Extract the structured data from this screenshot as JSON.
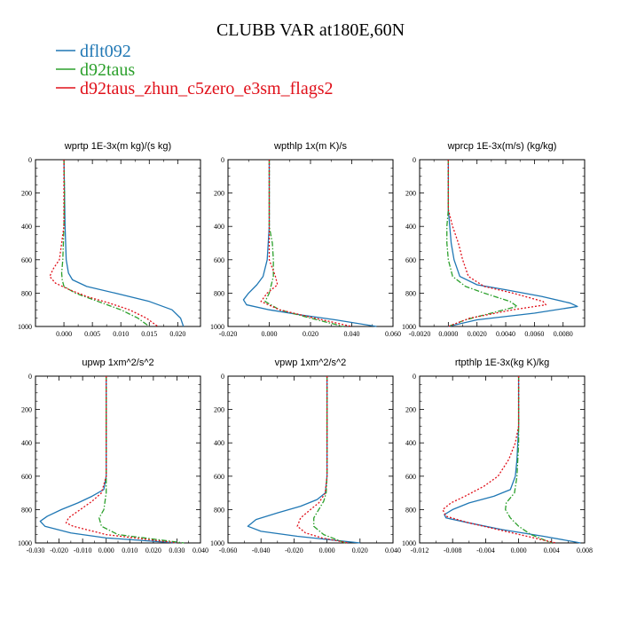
{
  "title": "CLUBB VAR at180E,60N",
  "legend": [
    {
      "label": "dflt092",
      "color": "#1f77b4",
      "dash": "solid"
    },
    {
      "label": "d92taus",
      "color": "#2ca02c",
      "dash": "dashdot"
    },
    {
      "label": "d92taus_zhun_c5zero_e3sm_flags2",
      "color": "#e0101a",
      "dash": "dotted"
    }
  ],
  "chart_data": [
    {
      "type": "line",
      "title": "wprtp   1E-3x(m kg)/(s kg)",
      "xlim": [
        -0.005,
        0.024
      ],
      "xticks": [
        0.0,
        0.005,
        0.01,
        0.015,
        0.02
      ],
      "xtick_labels": [
        "0.000",
        "0.005",
        "0.010",
        "0.015",
        "0.020"
      ],
      "ylim": [
        1000,
        0
      ],
      "yticks": [
        0,
        200,
        400,
        600,
        800,
        1000
      ],
      "ytick_labels": [
        "0",
        "200",
        "400",
        "600",
        "800",
        "1000"
      ],
      "series": [
        {
          "name": "dflt092",
          "y": [
            0,
            200,
            400,
            600,
            680,
            720,
            760,
            800,
            850,
            900,
            950,
            1000
          ],
          "x": [
            0.0,
            0.0001,
            0.0002,
            0.0004,
            0.0008,
            0.0015,
            0.004,
            0.009,
            0.015,
            0.019,
            0.0205,
            0.021
          ]
        },
        {
          "name": "d92taus",
          "y": [
            0,
            200,
            400,
            600,
            680,
            720,
            760,
            800,
            850,
            900,
            950,
            1000
          ],
          "x": [
            0.0,
            0.0001,
            0.0,
            -0.0002,
            -0.0004,
            -0.0003,
            0.0,
            0.002,
            0.006,
            0.01,
            0.013,
            0.015
          ]
        },
        {
          "name": "d92taus_zhun_c5zero_e3sm_flags2",
          "y": [
            0,
            200,
            400,
            600,
            650,
            700,
            740,
            780,
            820,
            860,
            900,
            950,
            1000
          ],
          "x": [
            0.0,
            0.0,
            0.0,
            -0.0008,
            -0.0018,
            -0.0025,
            -0.0015,
            0.001,
            0.004,
            0.008,
            0.0115,
            0.0145,
            0.0165
          ]
        }
      ]
    },
    {
      "type": "line",
      "title": "wpthlp   1x(m K)/s",
      "xlim": [
        -0.02,
        0.06
      ],
      "xticks": [
        -0.02,
        0.0,
        0.02,
        0.04,
        0.06
      ],
      "xtick_labels": [
        "-0.020",
        "0.000",
        "0.020",
        "0.040",
        "0.060"
      ],
      "ylim": [
        1000,
        0
      ],
      "yticks": [
        0,
        200,
        400,
        600,
        800,
        1000
      ],
      "ytick_labels": [
        "0",
        "200",
        "400",
        "600",
        "800",
        "1000"
      ],
      "series": [
        {
          "name": "dflt092",
          "y": [
            0,
            200,
            400,
            600,
            700,
            750,
            800,
            840,
            870,
            900,
            930,
            960,
            1000
          ],
          "x": [
            0.0,
            0.0,
            0.0,
            -0.001,
            -0.003,
            -0.006,
            -0.01,
            -0.0125,
            -0.011,
            0.0,
            0.015,
            0.032,
            0.052
          ]
        },
        {
          "name": "d92taus",
          "y": [
            0,
            200,
            400,
            500,
            600,
            700,
            800,
            850,
            900,
            950,
            1000
          ],
          "x": [
            0.0,
            0.0,
            0.0,
            0.0015,
            0.002,
            0.002,
            0.0,
            -0.002,
            0.005,
            0.02,
            0.036
          ]
        },
        {
          "name": "d92taus_zhun_c5zero_e3sm_flags2",
          "y": [
            0,
            200,
            400,
            600,
            700,
            750,
            800,
            850,
            900,
            950,
            1000
          ],
          "x": [
            0.0,
            0.0,
            0.0,
            0.0,
            0.003,
            0.004,
            -0.001,
            -0.004,
            0.005,
            0.022,
            0.04
          ]
        }
      ]
    },
    {
      "type": "line",
      "title": "wprcp   1E-3x(m/s) (kg/kg)",
      "xlim": [
        -0.002,
        0.0095
      ],
      "xticks": [
        -0.002,
        0.0,
        0.002,
        0.004,
        0.006,
        0.008
      ],
      "xtick_labels": [
        "-0.0020",
        "0.0000",
        "0.0020",
        "0.0040",
        "0.0060",
        "0.0080"
      ],
      "ylim": [
        1000,
        0
      ],
      "yticks": [
        0,
        200,
        400,
        600,
        800,
        1000
      ],
      "ytick_labels": [
        "0",
        "200",
        "400",
        "600",
        "800",
        "1000"
      ],
      "series": [
        {
          "name": "dflt092",
          "y": [
            0,
            200,
            300,
            400,
            500,
            600,
            700,
            750,
            780,
            820,
            860,
            880,
            920,
            960,
            1000
          ],
          "x": [
            0.0,
            0.0,
            0.0,
            0.0001,
            0.0002,
            0.0004,
            0.0008,
            0.002,
            0.004,
            0.0065,
            0.0085,
            0.009,
            0.006,
            0.002,
            0.0
          ]
        },
        {
          "name": "d92taus",
          "y": [
            0,
            200,
            300,
            400,
            500,
            600,
            700,
            760,
            800,
            850,
            880,
            920,
            960,
            1000
          ],
          "x": [
            0.0,
            0.0,
            0.0,
            -0.0001,
            -0.0001,
            0.0,
            0.0003,
            0.0012,
            0.0025,
            0.0043,
            0.0048,
            0.003,
            0.0012,
            0.0
          ]
        },
        {
          "name": "d92taus_zhun_c5zero_e3sm_flags2",
          "y": [
            0,
            200,
            300,
            400,
            500,
            600,
            700,
            760,
            800,
            850,
            870,
            900,
            950,
            1000
          ],
          "x": [
            0.0,
            0.0,
            0.0,
            0.0003,
            0.0007,
            0.001,
            0.0014,
            0.0025,
            0.0045,
            0.0066,
            0.0068,
            0.0045,
            0.0015,
            0.0
          ]
        }
      ]
    },
    {
      "type": "line",
      "title": "upwp   1xm^2/s^2",
      "xlim": [
        -0.03,
        0.04
      ],
      "xticks": [
        -0.03,
        -0.02,
        -0.01,
        0.0,
        0.01,
        0.02,
        0.03,
        0.04
      ],
      "xtick_labels": [
        "-0.030",
        "-0.020",
        "-0.010",
        "0.000",
        "0.010",
        "0.020",
        "0.030",
        "0.040"
      ],
      "ylim": [
        1000,
        0
      ],
      "yticks": [
        0,
        200,
        400,
        600,
        800,
        1000
      ],
      "ytick_labels": [
        "0",
        "200",
        "400",
        "600",
        "800",
        "1000"
      ],
      "series": [
        {
          "name": "dflt092",
          "y": [
            0,
            200,
            400,
            600,
            680,
            720,
            760,
            800,
            840,
            870,
            900,
            940,
            970,
            1000
          ],
          "x": [
            0.0,
            0.0,
            0.0,
            0.0,
            -0.001,
            -0.006,
            -0.012,
            -0.019,
            -0.025,
            -0.028,
            -0.026,
            -0.015,
            0.0,
            0.03
          ]
        },
        {
          "name": "d92taus",
          "y": [
            0,
            200,
            400,
            600,
            700,
            800,
            850,
            900,
            950,
            1000
          ],
          "x": [
            0.0,
            0.0,
            0.0,
            0.0,
            0.0,
            -0.001,
            -0.003,
            -0.002,
            0.005,
            0.033
          ]
        },
        {
          "name": "d92taus_zhun_c5zero_e3sm_flags2",
          "y": [
            0,
            200,
            400,
            600,
            700,
            750,
            800,
            850,
            880,
            900,
            950,
            1000
          ],
          "x": [
            0.0,
            0.0,
            0.0,
            0.0,
            -0.002,
            -0.006,
            -0.011,
            -0.016,
            -0.017,
            -0.014,
            0.0,
            0.03
          ]
        }
      ]
    },
    {
      "type": "line",
      "title": "vpwp   1xm^2/s^2",
      "xlim": [
        -0.06,
        0.04
      ],
      "xticks": [
        -0.06,
        -0.04,
        -0.02,
        0.0,
        0.02,
        0.04
      ],
      "xtick_labels": [
        "-0.060",
        "-0.040",
        "-0.020",
        "0.000",
        "0.020",
        "0.040"
      ],
      "ylim": [
        1000,
        0
      ],
      "yticks": [
        0,
        200,
        400,
        600,
        800,
        1000
      ],
      "ytick_labels": [
        "0",
        "200",
        "400",
        "600",
        "800",
        "1000"
      ],
      "series": [
        {
          "name": "dflt092",
          "y": [
            0,
            200,
            400,
            600,
            700,
            740,
            780,
            820,
            860,
            900,
            930,
            960,
            1000
          ],
          "x": [
            0.0,
            0.0,
            0.0,
            0.0,
            -0.001,
            -0.006,
            -0.016,
            -0.03,
            -0.043,
            -0.048,
            -0.04,
            -0.018,
            0.02
          ]
        },
        {
          "name": "d92taus",
          "y": [
            0,
            200,
            400,
            600,
            700,
            750,
            800,
            850,
            900,
            950,
            1000
          ],
          "x": [
            0.0,
            0.0,
            0.0,
            0.0,
            -0.0005,
            -0.002,
            -0.005,
            -0.008,
            -0.008,
            -0.002,
            0.011
          ]
        },
        {
          "name": "d92taus_zhun_c5zero_e3sm_flags2",
          "y": [
            0,
            200,
            400,
            600,
            700,
            760,
            800,
            850,
            900,
            940,
            970,
            1000
          ],
          "x": [
            0.0,
            0.0,
            0.0,
            0.0,
            -0.001,
            -0.005,
            -0.01,
            -0.016,
            -0.018,
            -0.013,
            -0.003,
            0.013
          ]
        }
      ]
    },
    {
      "type": "line",
      "title": "rtpthlp   1E-3x(kg K)/kg",
      "xlim": [
        -0.012,
        0.008
      ],
      "xticks": [
        -0.012,
        -0.008,
        -0.004,
        0.0,
        0.004,
        0.008
      ],
      "xtick_labels": [
        "-0.012",
        "-0.008",
        "-0.004",
        "0.000",
        "0.004",
        "0.008"
      ],
      "ylim": [
        1000,
        0
      ],
      "yticks": [
        0,
        200,
        400,
        600,
        800,
        1000
      ],
      "ytick_labels": [
        "0",
        "200",
        "400",
        "600",
        "800",
        "1000"
      ],
      "series": [
        {
          "name": "dflt092",
          "y": [
            0,
            200,
            300,
            400,
            500,
            600,
            680,
            720,
            760,
            800,
            830,
            850,
            880,
            920,
            960,
            1000
          ],
          "x": [
            0.0,
            0.0,
            0.0,
            -0.0001,
            -0.0002,
            -0.0004,
            -0.001,
            -0.003,
            -0.006,
            -0.008,
            -0.009,
            -0.0088,
            -0.006,
            -0.002,
            0.003,
            0.0075
          ]
        },
        {
          "name": "d92taus",
          "y": [
            0,
            200,
            300,
            400,
            500,
            600,
            700,
            760,
            800,
            850,
            900,
            950,
            1000
          ],
          "x": [
            0.0,
            0.0,
            0.0,
            0.0,
            -0.0001,
            -0.0002,
            -0.0005,
            -0.0015,
            -0.0016,
            -0.001,
            0.0,
            0.0015,
            0.004
          ]
        },
        {
          "name": "d92taus_zhun_c5zero_e3sm_flags2",
          "y": [
            0,
            200,
            300,
            400,
            500,
            600,
            660,
            720,
            760,
            800,
            840,
            880,
            920,
            960,
            1000
          ],
          "x": [
            0.0,
            0.0,
            0.0,
            -0.0004,
            -0.0012,
            -0.0025,
            -0.0042,
            -0.0065,
            -0.0082,
            -0.0092,
            -0.0088,
            -0.006,
            -0.0025,
            0.001,
            0.0045
          ]
        }
      ]
    }
  ]
}
